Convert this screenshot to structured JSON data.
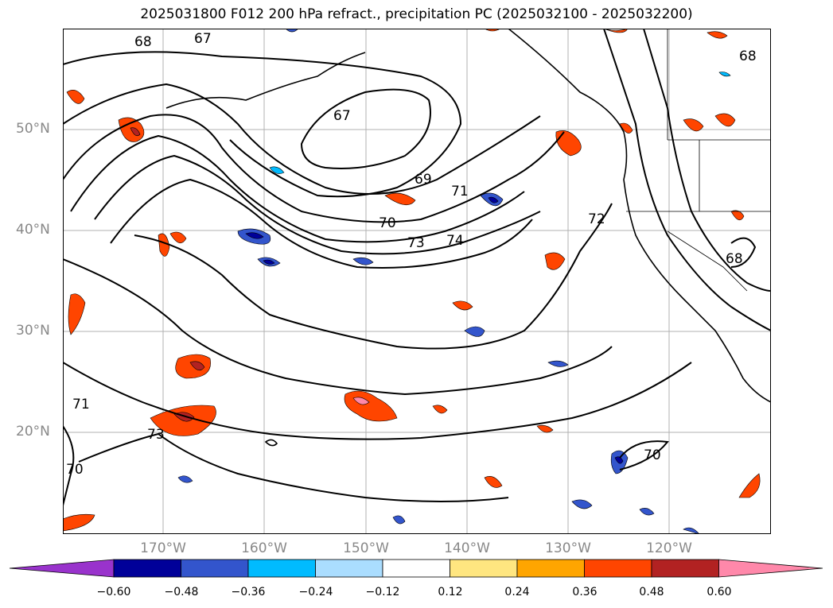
{
  "title": "2025031800 F012 200 hPa refract., precipitation PC (2025032100 - 2025032200)",
  "lat_ticks": [
    "50°N",
    "40°N",
    "30°N",
    "20°N"
  ],
  "lon_ticks": [
    "170°W",
    "160°W",
    "150°W",
    "140°W",
    "130°W",
    "120°W"
  ],
  "contour_labels": [
    "68",
    "67",
    "67",
    "69",
    "71",
    "70",
    "73",
    "74",
    "72",
    "68",
    "68",
    "71",
    "73",
    "70",
    "70"
  ],
  "colorbar": {
    "ticks": [
      "−0.60",
      "−0.48",
      "−0.36",
      "−0.24",
      "−0.12",
      "0.12",
      "0.24",
      "0.36",
      "0.48",
      "0.60"
    ],
    "colors": [
      "#9933cc",
      "#000099",
      "#3355cc",
      "#00bbff",
      "#aaddff",
      "#ffffff",
      "#ffe680",
      "#ffa500",
      "#ff4500",
      "#b22222",
      "#ff88aa"
    ]
  }
}
